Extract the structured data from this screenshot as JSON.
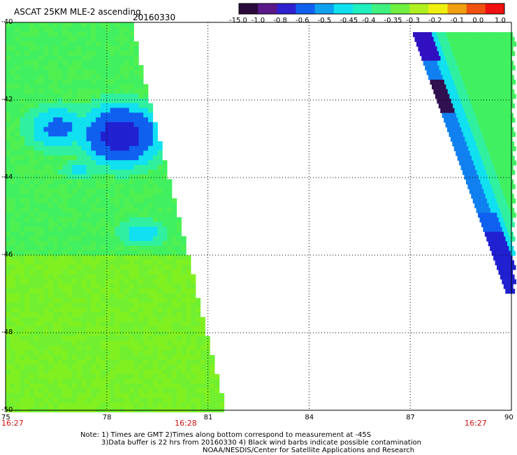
{
  "header": {
    "title": "ASCAT 25KM MLE-2 ascending",
    "date": "20160330"
  },
  "colorbar": {
    "labels": [
      "-15.0",
      "-1.0",
      "-0.8",
      "-0.6",
      "-0.5",
      "-0.45",
      "-0.4",
      "-0.35",
      "-0.3",
      "-0.2",
      "-0.1",
      "0.0",
      "1.0"
    ],
    "colors": [
      "#2a0a3a",
      "#5a1a8a",
      "#3020d0",
      "#1060f0",
      "#10a0f0",
      "#10e0f0",
      "#20f0c0",
      "#40f080",
      "#70f040",
      "#b0f020",
      "#f0f010",
      "#f0a010",
      "#f05010",
      "#f01010"
    ]
  },
  "map": {
    "lat_labels": [
      "-40",
      "-42",
      "-44",
      "-46",
      "-48",
      "-50"
    ],
    "lon_labels": [
      "75",
      "78",
      "81",
      "84",
      "87",
      "90"
    ],
    "time_labels": [
      "16:27",
      "16:28",
      "16:27"
    ]
  },
  "notes": {
    "line1": "Note: 1) Times are GMT 2)Times along bottom correspond to measurement at -45S",
    "line2": "3)Data buffer is 22 hrs from 20160330 4) Black wind barbs indicate possible contamination",
    "line3": "NOAA/NESDIS/Center for Satellite Applications and Research"
  }
}
